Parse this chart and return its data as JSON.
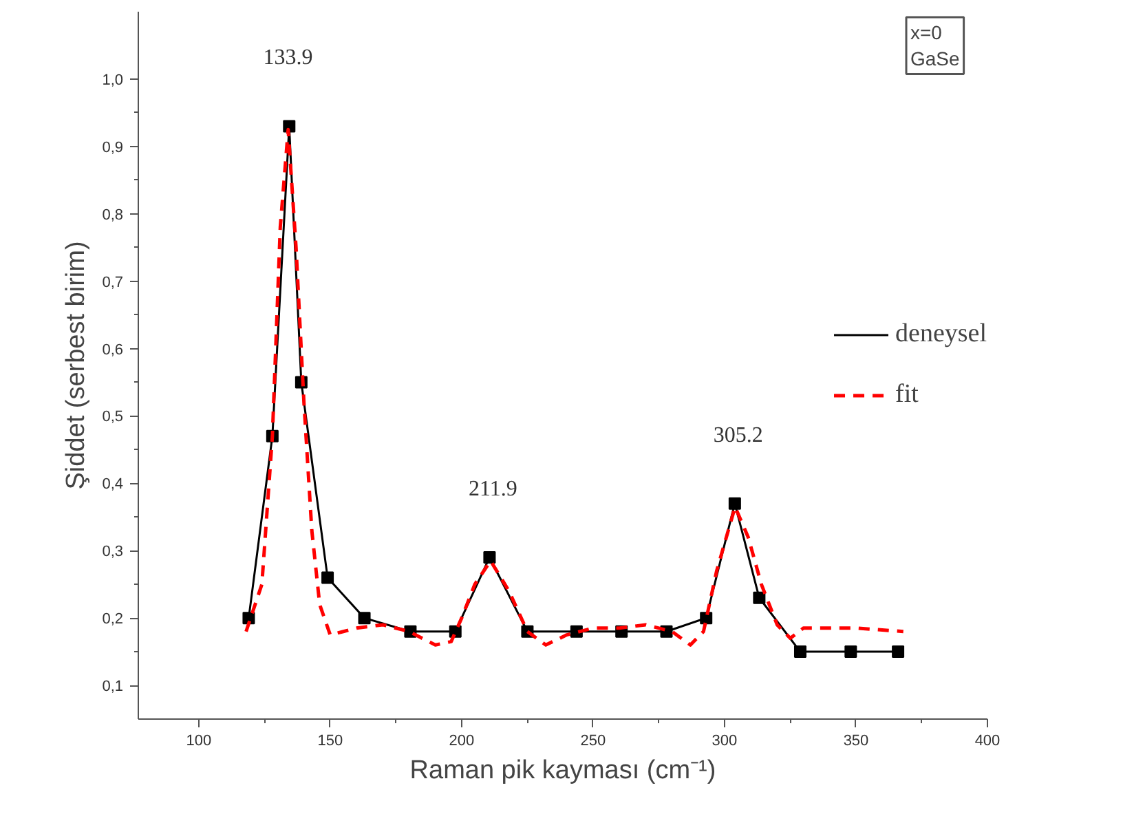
{
  "chart_data": {
    "type": "line",
    "xlabel": "Raman pik kayması (cm⁻¹)",
    "ylabel": "Şiddet (serbest birim)",
    "xlim": [
      77,
      400
    ],
    "xticks": [
      100,
      150,
      200,
      250,
      300,
      350,
      400
    ],
    "ylim": [
      0.05,
      1.1
    ],
    "yticks": [
      {
        "value": 0.1,
        "label": "0,1"
      },
      {
        "value": 0.2,
        "label": "0,2"
      },
      {
        "value": 0.3,
        "label": "0,3"
      },
      {
        "value": 0.4,
        "label": "0,4"
      },
      {
        "value": 0.5,
        "label": "0,5"
      },
      {
        "value": 0.6,
        "label": "0,6"
      },
      {
        "value": 0.7,
        "label": "0,7"
      },
      {
        "value": 0.8,
        "label": "0,8"
      },
      {
        "value": 0.9,
        "label": "0,9"
      },
      {
        "value": 1.0,
        "label": "1,0"
      }
    ],
    "grid": false,
    "legend": "right",
    "series": [
      {
        "name": "deneysel",
        "color": "#000000",
        "marker": "square",
        "line_style": "solid",
        "x": [
          119,
          128,
          134.4,
          139,
          149,
          163,
          180.5,
          197.6,
          210.6,
          225,
          243.7,
          260.8,
          277.9,
          293,
          303.9,
          313.2,
          328.8,
          348,
          366
        ],
        "values": [
          0.2,
          0.47,
          0.93,
          0.55,
          0.26,
          0.2,
          0.18,
          0.18,
          0.29,
          0.18,
          0.18,
          0.18,
          0.18,
          0.2,
          0.37,
          0.23,
          0.15,
          0.15,
          0.15
        ]
      },
      {
        "name": "fit",
        "color": "#ff0000",
        "marker": "none",
        "line_style": "dashed",
        "x": [
          118,
          124,
          128,
          131,
          134,
          137,
          140,
          143,
          146,
          150,
          155,
          160,
          170,
          180,
          190,
          196,
          200,
          205,
          211,
          218,
          225,
          232,
          240,
          250,
          260,
          270,
          280,
          287,
          292,
          297,
          304,
          309,
          314,
          320,
          325,
          330,
          350,
          368
        ],
        "values": [
          0.18,
          0.25,
          0.47,
          0.78,
          0.925,
          0.75,
          0.52,
          0.33,
          0.22,
          0.175,
          0.18,
          0.185,
          0.19,
          0.18,
          0.16,
          0.165,
          0.2,
          0.25,
          0.285,
          0.24,
          0.18,
          0.16,
          0.175,
          0.185,
          0.185,
          0.19,
          0.18,
          0.16,
          0.18,
          0.27,
          0.365,
          0.32,
          0.25,
          0.19,
          0.17,
          0.185,
          0.185,
          0.18
        ]
      }
    ],
    "annotations": [
      {
        "text": "133.9",
        "x": 133.9,
        "y": 0.93
      },
      {
        "text": "211.9",
        "x": 211.9,
        "y": 0.29
      },
      {
        "text": "305.2",
        "x": 305.2,
        "y": 0.37
      },
      "x=0\nGaSe"
    ]
  }
}
